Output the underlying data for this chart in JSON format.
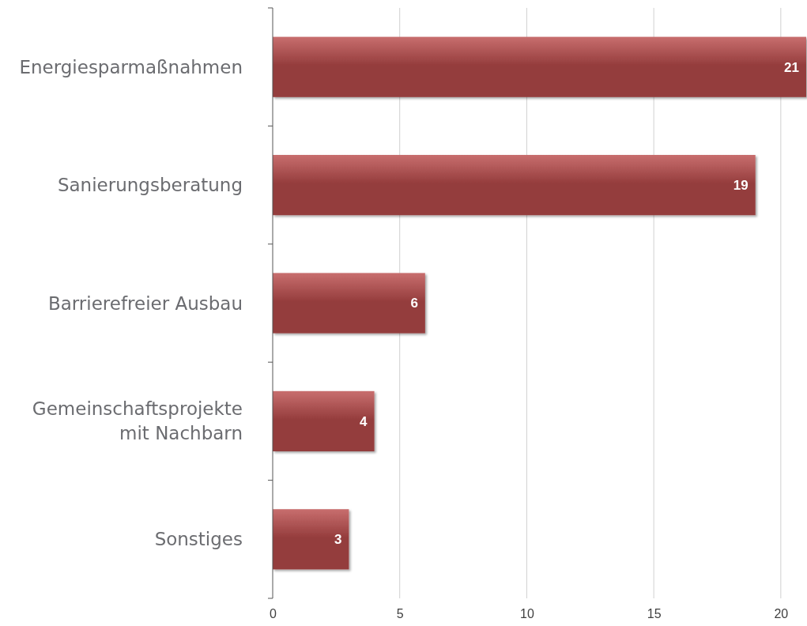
{
  "chart_data": {
    "type": "bar",
    "orientation": "horizontal",
    "categories": [
      "Energiesparmaßnahmen",
      "Sanierungsberatung",
      "Barrierefreier Ausbau",
      "Gemeinschaftsprojekte mit Nachbarn",
      "Sonstiges"
    ],
    "values": [
      21,
      19,
      6,
      4,
      3
    ],
    "color": "#943c3c",
    "xlim": [
      0,
      21
    ],
    "xticks": [
      0,
      5,
      10,
      15,
      20
    ],
    "grid": "x",
    "data_labels": true
  }
}
